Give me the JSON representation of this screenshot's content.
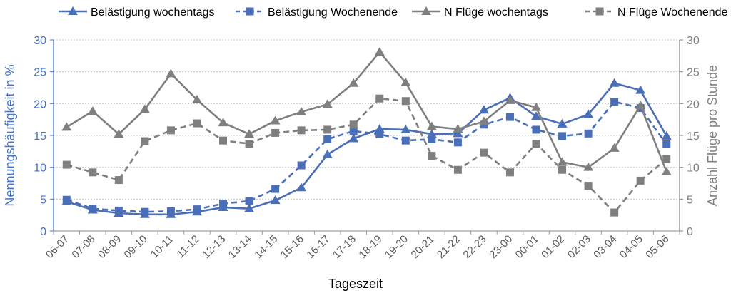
{
  "chart_data": {
    "type": "line",
    "title": "",
    "xlabel": "Tageszeit",
    "ylabel": "Nennungshäufigkeit in %",
    "y2label": "Anzahl Flüge pro Stunde",
    "ylim": [
      0,
      30
    ],
    "y2lim": [
      0,
      30
    ],
    "yticks": [
      "0",
      "5",
      "10",
      "15",
      "20",
      "25",
      "30"
    ],
    "grid": true,
    "legend_position": "top",
    "categories": [
      "06-07",
      "07-08",
      "08-09",
      "09-10",
      "10-11",
      "11-12",
      "12-13",
      "13-14",
      "14-15",
      "15-16",
      "16-17",
      "17-18",
      "18-19",
      "19-20",
      "20-21",
      "21-22",
      "22-23",
      "23-00",
      "00-01",
      "01-02",
      "02-03",
      "03-04",
      "04-05",
      "05-06"
    ],
    "series": [
      {
        "name": "Belästigung wochentags",
        "axis": "left",
        "color": "#4a6fb8",
        "dash": false,
        "marker": "triangle",
        "values": [
          4.6,
          3.3,
          2.8,
          2.6,
          2.6,
          3.0,
          3.7,
          3.5,
          4.8,
          6.8,
          12.0,
          14.5,
          16.0,
          15.9,
          15.2,
          15.3,
          19.0,
          20.9,
          18.0,
          16.8,
          18.3,
          23.2,
          22.1,
          14.9
        ]
      },
      {
        "name": "Belästigung Wochenende",
        "axis": "left",
        "color": "#4a6fb8",
        "dash": true,
        "marker": "square",
        "values": [
          4.9,
          3.5,
          3.2,
          3.0,
          3.1,
          3.4,
          4.3,
          4.7,
          6.6,
          10.3,
          14.4,
          15.7,
          15.2,
          14.2,
          14.4,
          13.9,
          16.7,
          17.9,
          15.9,
          14.9,
          15.3,
          20.3,
          19.3,
          13.6
        ]
      },
      {
        "name": "N Flüge wochentags",
        "axis": "right",
        "color": "#7f7f7f",
        "dash": false,
        "marker": "triangle",
        "values": [
          16.3,
          18.8,
          15.2,
          19.1,
          24.7,
          20.6,
          17.0,
          15.2,
          17.3,
          18.7,
          19.9,
          23.2,
          28.1,
          23.3,
          16.4,
          16.0,
          17.2,
          20.5,
          19.4,
          10.8,
          10.0,
          13.0,
          19.7,
          9.3
        ]
      },
      {
        "name": "N Flüge Wochenende",
        "axis": "right",
        "color": "#7f7f7f",
        "dash": true,
        "marker": "square",
        "values": [
          10.4,
          9.2,
          8.0,
          14.1,
          15.8,
          16.9,
          14.2,
          13.7,
          15.4,
          15.8,
          15.9,
          16.7,
          20.8,
          20.4,
          11.8,
          9.6,
          12.3,
          9.2,
          13.7,
          9.6,
          7.1,
          2.9,
          7.9,
          11.3
        ]
      }
    ]
  }
}
